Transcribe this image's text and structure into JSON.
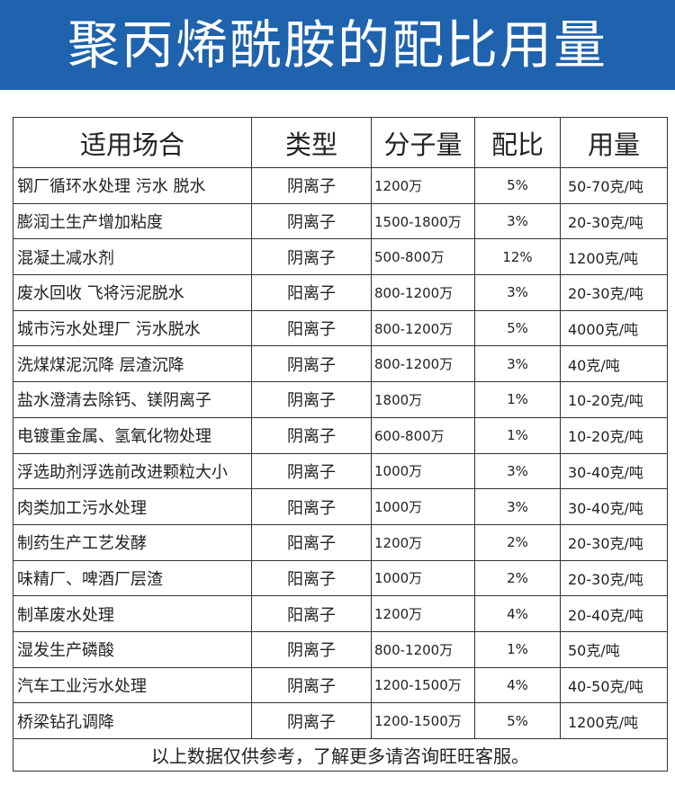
{
  "title": "聚丙烯酰胺的配比用量",
  "table": {
    "headers": [
      "适用场合",
      "类型",
      "分子量",
      "配比",
      "用量"
    ],
    "rows": [
      [
        "钢厂循环水处理 污水 脱水",
        "阴离子",
        "1200万",
        "5%",
        "50-70克/吨"
      ],
      [
        "膨润土生产增加粘度",
        "阴离子",
        "1500-1800万",
        "3%",
        "20-30克/吨"
      ],
      [
        "混凝土减水剂",
        "阴离子",
        "500-800万",
        "12%",
        "1200克/吨"
      ],
      [
        "废水回收 飞将污泥脱水",
        "阳离子",
        "800-1200万",
        "3%",
        "20-30克/吨"
      ],
      [
        "城市污水处理厂 污水脱水",
        "阳离子",
        "800-1200万",
        "5%",
        "4000克/吨"
      ],
      [
        "洗煤煤泥沉降 层渣沉降",
        "阴离子",
        "800-1200万",
        "3%",
        "40克/吨"
      ],
      [
        "盐水澄清去除钙、镁阴离子",
        "阴离子",
        "1800万",
        "1%",
        "10-20克/吨"
      ],
      [
        "电镀重金属、氢氧化物处理",
        "阴离子",
        "600-800万",
        "1%",
        "10-20克/吨"
      ],
      [
        "浮选助剂浮选前改进颗粒大小",
        "阴离子",
        "1000万",
        "3%",
        "30-40克/吨"
      ],
      [
        "肉类加工污水处理",
        "阳离子",
        "1000万",
        "3%",
        "30-40克/吨"
      ],
      [
        "制药生产工艺发酵",
        "阳离子",
        "1200万",
        "2%",
        "20-30克/吨"
      ],
      [
        "味精厂、啤酒厂层渣",
        "阳离子",
        "1000万",
        "2%",
        "20-30克/吨"
      ],
      [
        "制革废水处理",
        "阳离子",
        "1200万",
        "4%",
        "20-40克/吨"
      ],
      [
        "湿发生产磷酸",
        "阴离子",
        "800-1200万",
        "1%",
        "50克/吨"
      ],
      [
        "汽车工业污水处理",
        "阴离子",
        "1200-1500万",
        "4%",
        "40-50克/吨"
      ],
      [
        "桥梁钻孔调降",
        "阴离子",
        "1200-1500万",
        "5%",
        "1200克/吨"
      ]
    ],
    "footer": "以上数据仅供参考，了解更多请咨询旺旺客服。"
  },
  "colors": {
    "banner": "#1f62ad"
  }
}
